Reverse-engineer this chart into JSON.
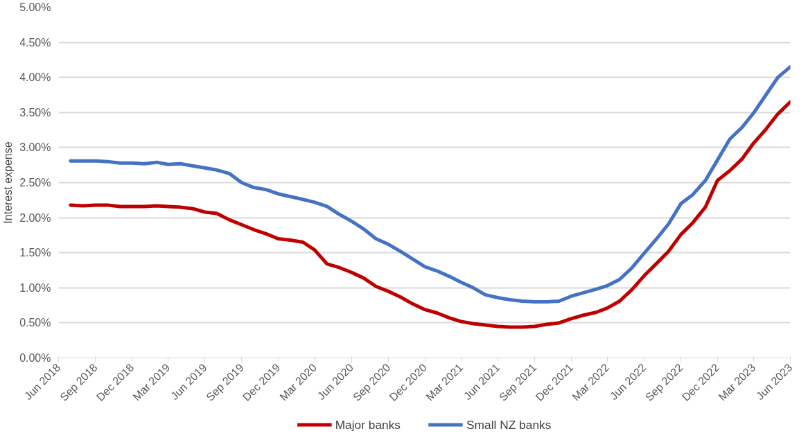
{
  "chart_data": {
    "type": "line",
    "ylabel": "Interest expense",
    "x": [
      "2018-07",
      "2018-08",
      "2018-09",
      "2018-10",
      "2018-11",
      "2018-12",
      "2019-01",
      "2019-02",
      "2019-03",
      "2019-04",
      "2019-05",
      "2019-06",
      "2019-07",
      "2019-08",
      "2019-09",
      "2019-10",
      "2019-11",
      "2019-12",
      "2020-01",
      "2020-02",
      "2020-03",
      "2020-04",
      "2020-05",
      "2020-06",
      "2020-07",
      "2020-08",
      "2020-09",
      "2020-10",
      "2020-11",
      "2020-12",
      "2021-01",
      "2021-02",
      "2021-03",
      "2021-04",
      "2021-05",
      "2021-06",
      "2021-07",
      "2021-08",
      "2021-09",
      "2021-10",
      "2021-11",
      "2021-12",
      "2022-01",
      "2022-02",
      "2022-03",
      "2022-04",
      "2022-05",
      "2022-06",
      "2022-07",
      "2022-08",
      "2022-09",
      "2022-10",
      "2022-11",
      "2022-12",
      "2023-01",
      "2023-02",
      "2023-03",
      "2023-04",
      "2023-05",
      "2023-06"
    ],
    "series": [
      {
        "name": "Major banks",
        "color": "#c00000",
        "values": [
          2.18,
          2.17,
          2.18,
          2.18,
          2.16,
          2.16,
          2.16,
          2.17,
          2.16,
          2.15,
          2.13,
          2.08,
          2.06,
          1.97,
          1.9,
          1.83,
          1.77,
          1.7,
          1.68,
          1.65,
          1.54,
          1.34,
          1.29,
          1.22,
          1.14,
          1.02,
          0.95,
          0.87,
          0.77,
          0.69,
          0.64,
          0.57,
          0.52,
          0.49,
          0.47,
          0.45,
          0.44,
          0.44,
          0.45,
          0.48,
          0.5,
          0.56,
          0.61,
          0.65,
          0.71,
          0.81,
          0.97,
          1.17,
          1.34,
          1.52,
          1.76,
          1.93,
          2.15,
          2.53,
          2.67,
          2.84,
          3.06,
          3.26,
          3.48,
          3.65
        ]
      },
      {
        "name": "Small NZ banks",
        "color": "#4472c4",
        "values": [
          2.81,
          2.81,
          2.81,
          2.8,
          2.78,
          2.78,
          2.77,
          2.79,
          2.76,
          2.77,
          2.74,
          2.71,
          2.68,
          2.63,
          2.5,
          2.43,
          2.4,
          2.34,
          2.3,
          2.26,
          2.22,
          2.16,
          2.05,
          1.95,
          1.84,
          1.7,
          1.62,
          1.52,
          1.41,
          1.3,
          1.24,
          1.16,
          1.08,
          1.0,
          0.9,
          0.86,
          0.83,
          0.81,
          0.8,
          0.8,
          0.81,
          0.88,
          0.93,
          0.98,
          1.03,
          1.12,
          1.28,
          1.49,
          1.69,
          1.91,
          2.2,
          2.33,
          2.53,
          2.82,
          3.12,
          3.29,
          3.49,
          3.75,
          4.0,
          4.15
        ]
      }
    ],
    "xlim": [
      "2018-06",
      "2023-06"
    ],
    "xticks": [
      {
        "value": "2018-06",
        "label": "Jun 2018"
      },
      {
        "value": "2018-09",
        "label": "Sep 2018"
      },
      {
        "value": "2018-12",
        "label": "Dec 2018"
      },
      {
        "value": "2019-03",
        "label": "Mar 2019"
      },
      {
        "value": "2019-06",
        "label": "Jun 2019"
      },
      {
        "value": "2019-09",
        "label": "Sep 2019"
      },
      {
        "value": "2019-12",
        "label": "Dec 2019"
      },
      {
        "value": "2020-03",
        "label": "Mar 2020"
      },
      {
        "value": "2020-06",
        "label": "Jun 2020"
      },
      {
        "value": "2020-09",
        "label": "Sep 2020"
      },
      {
        "value": "2020-12",
        "label": "Dec 2020"
      },
      {
        "value": "2021-03",
        "label": "Mar 2021"
      },
      {
        "value": "2021-06",
        "label": "Jun 2021"
      },
      {
        "value": "2021-09",
        "label": "Sep 2021"
      },
      {
        "value": "2021-12",
        "label": "Dec 2021"
      },
      {
        "value": "2022-03",
        "label": "Mar 2022"
      },
      {
        "value": "2022-06",
        "label": "Jun 2022"
      },
      {
        "value": "2022-09",
        "label": "Sep 2022"
      },
      {
        "value": "2022-12",
        "label": "Dec 2022"
      },
      {
        "value": "2023-03",
        "label": "Mar 2023"
      },
      {
        "value": "2023-06",
        "label": "Jun 2023"
      }
    ],
    "ylim": [
      0,
      5
    ],
    "yticks": [
      {
        "value": 0,
        "label": "0.00%"
      },
      {
        "value": 0.5,
        "label": "0.50%"
      },
      {
        "value": 1,
        "label": "1.00%"
      },
      {
        "value": 1.5,
        "label": "1.50%"
      },
      {
        "value": 2,
        "label": "2.00%"
      },
      {
        "value": 2.5,
        "label": "2.50%"
      },
      {
        "value": 3,
        "label": "3.00%"
      },
      {
        "value": 3.5,
        "label": "3.50%"
      },
      {
        "value": 4,
        "label": "4.00%"
      },
      {
        "value": 4.5,
        "label": "4.50%"
      },
      {
        "value": 5,
        "label": "5.00%"
      }
    ],
    "grid": "y",
    "legend": "bottom",
    "marker": "none",
    "line_style": "solid"
  }
}
